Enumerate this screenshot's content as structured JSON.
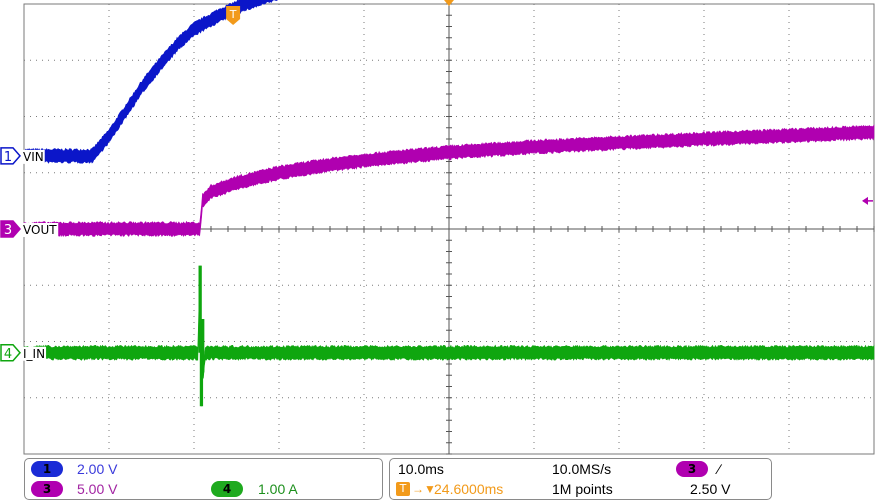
{
  "chart_data": {
    "type": "line",
    "title": "",
    "xlabel": "",
    "ylabel": "",
    "grid": true,
    "divisions": {
      "x": 10,
      "y": 8
    },
    "time_per_div_ms": 10.0,
    "trigger_time_ms": 24.6,
    "series": [
      {
        "name": "VIN",
        "channel": "1",
        "color": "#0b16c9",
        "volts_per_div": 2.0,
        "unit": "V",
        "offset_div": 1.3,
        "x_ms": [
          0,
          8,
          10,
          12,
          14,
          16,
          18,
          20,
          23,
          26,
          30,
          35,
          40,
          46,
          52,
          60,
          80,
          100
        ],
        "y": [
          0,
          0,
          0.7,
          1.6,
          2.5,
          3.25,
          3.95,
          4.5,
          5.0,
          5.4,
          5.8,
          6.05,
          6.2,
          6.3,
          6.35,
          6.35,
          6.35,
          6.35
        ]
      },
      {
        "name": "VOUT",
        "channel": "3",
        "color": "#b000b0",
        "volts_per_div": 5.0,
        "unit": "V",
        "offset_div": 0.0,
        "x_ms": [
          0,
          10,
          20.7,
          21.0,
          22,
          25,
          30,
          35,
          40,
          50,
          60,
          70,
          80,
          90,
          100
        ],
        "y": [
          0,
          0,
          0,
          2.5,
          3.3,
          4.1,
          5.0,
          5.6,
          6.1,
          6.8,
          7.3,
          7.65,
          8.0,
          8.3,
          8.6
        ]
      },
      {
        "name": "I_IN",
        "channel": "4",
        "color": "#0fa60f",
        "volts_per_div": 1.0,
        "unit": "A",
        "offset_div": -2.2,
        "x_ms": [
          0,
          20.5,
          20.65,
          20.8,
          20.95,
          21.1,
          21.3,
          100
        ],
        "y": [
          0,
          0,
          1.55,
          -0.95,
          0.6,
          -0.35,
          0,
          0
        ]
      }
    ]
  },
  "markers": {
    "trigger_glyph": "T",
    "ch1_glyph": "1",
    "ch3_glyph": "3",
    "ch4_glyph": "4"
  },
  "status": {
    "ch1_scale": "2.00 V",
    "ch3_scale": "5.00 V",
    "ch4_scale": "1.00 A",
    "timebase": "10.0ms",
    "sample_rate": "10.0MS/s",
    "record_length": "1M points",
    "trigger_position": "24.6000ms",
    "trigger_channel": "3",
    "trigger_slope": "∕",
    "trigger_level": "2.50 V",
    "ch1_badge": "1",
    "ch3_badge": "3",
    "ch4_badge": "4"
  },
  "colors": {
    "ch1": "#0b16c9",
    "ch3": "#b000b0",
    "ch4": "#0fa60f",
    "trigger": "#f29a1a",
    "grid": "#7a7a7a"
  }
}
